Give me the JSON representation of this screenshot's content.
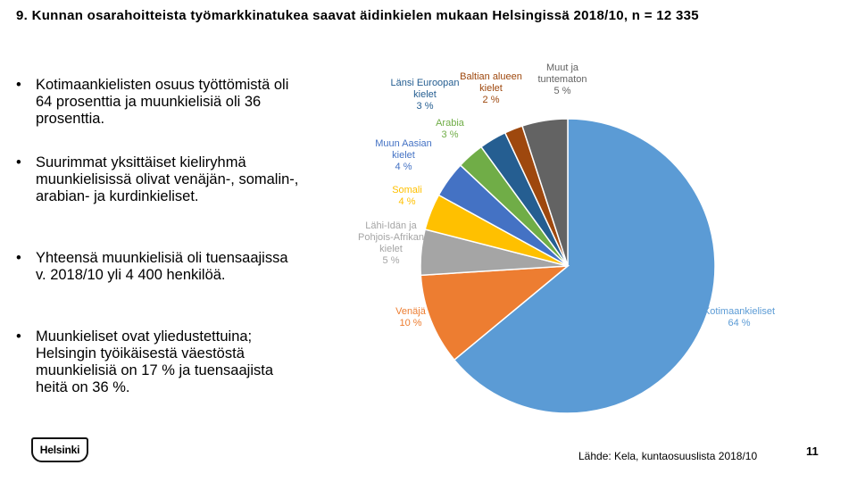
{
  "slide": {
    "title": "9. Kunnan osarahoitteista työmarkkinatukea saavat äidinkielen mukaan Helsingissä 2018/10, n = 12 335",
    "bullet_char": "•",
    "bullets": [
      "Kotimaankielisten osuus työttömistä oli 64 prosenttia ja muunkielisiä oli 36 prosenttia.",
      "Suurimmat yksittäiset kieliryhmä muunkielisissä olivat venäjän-, somalin-, arabian- ja kurdinkieliset.",
      "Yhteensä muunkielisiä oli tuensaajissa v. 2018/10 yli 4 400 henkilöä.",
      "Muunkieliset ovat yliedustettuina; Helsingin työikäisestä väestöstä muunkielisiä on 17 % ja tuensaajista heitä on 36 %."
    ],
    "logo_text": "Helsinki",
    "source": "Lähde: Kela, kuntaosuuslista 2018/10",
    "page_number": "11"
  },
  "chart_data": {
    "type": "pie",
    "title": "",
    "start": "top, clockwise",
    "slices": [
      {
        "label_lines": [
          "Kotimaankieliset",
          "64 %"
        ],
        "value": 64,
        "color": "#5b9bd5",
        "label_color": "#5b9bd5"
      },
      {
        "label_lines": [
          "Venäjä",
          "10 %"
        ],
        "value": 10,
        "color": "#ed7d31",
        "label_color": "#ed7d31"
      },
      {
        "label_lines": [
          "Lähi-Idän ja",
          "Pohjois-Afrikan",
          "kielet",
          "5 %"
        ],
        "value": 5,
        "color": "#a5a5a5",
        "label_color": "#a5a5a5"
      },
      {
        "label_lines": [
          "Somali",
          "4 %"
        ],
        "value": 4,
        "color": "#ffc000",
        "label_color": "#ffc000"
      },
      {
        "label_lines": [
          "Muun Aasian",
          "kielet",
          "4 %"
        ],
        "value": 4,
        "color": "#4472c4",
        "label_color": "#4472c4"
      },
      {
        "label_lines": [
          "Arabia",
          "3 %"
        ],
        "value": 3,
        "color": "#70ad47",
        "label_color": "#70ad47"
      },
      {
        "label_lines": [
          "Länsi Euroopan",
          "kielet",
          "3 %"
        ],
        "value": 3,
        "color": "#255e91",
        "label_color": "#255e91"
      },
      {
        "label_lines": [
          "Baltian alueen",
          "kielet",
          "2 %"
        ],
        "value": 2,
        "color": "#9e480e",
        "label_color": "#9e480e"
      },
      {
        "label_lines": [
          "Muut ja",
          "tuntematon",
          "5 %"
        ],
        "value": 5,
        "color": "#636363",
        "label_color": "#636363"
      }
    ]
  }
}
